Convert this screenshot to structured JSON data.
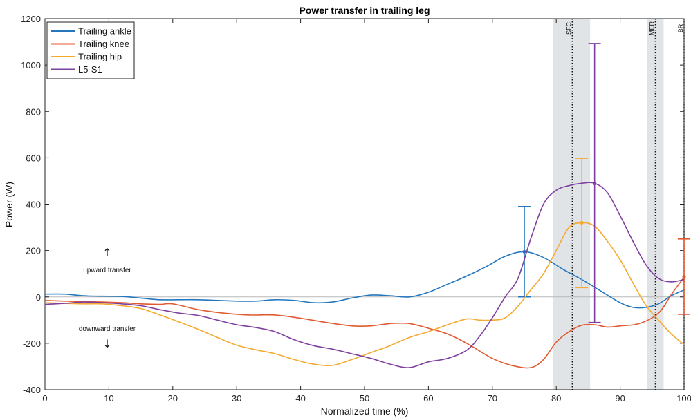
{
  "chart_data": {
    "type": "line",
    "title": "Power transfer in trailing leg",
    "xlabel": "Normalized time (%)",
    "ylabel": "Power (W)",
    "xlim": [
      0,
      100
    ],
    "ylim": [
      -400,
      1200
    ],
    "xticks": [
      0,
      10,
      20,
      30,
      40,
      50,
      60,
      70,
      80,
      90,
      100
    ],
    "yticks": [
      -400,
      -200,
      0,
      200,
      400,
      600,
      800,
      1000,
      1200
    ],
    "grid": false,
    "legend_position": "top-left",
    "zero_line": true,
    "events": [
      {
        "label": "SFC",
        "x": 82.5,
        "band": [
          79.5,
          85.3
        ]
      },
      {
        "label": "MER",
        "x": 95.5,
        "band": [
          94.2,
          96.8
        ]
      },
      {
        "label": "BR",
        "x": 100,
        "band": null
      }
    ],
    "annotations": {
      "up_arrow": "↑",
      "upward": "upward transfer",
      "downward": "downward transfer",
      "down_arrow": "↓"
    },
    "series": [
      {
        "name": "Trailing ankle",
        "color": "#2476bd",
        "x": [
          0,
          3,
          6,
          9,
          12,
          15,
          18,
          21,
          24,
          27,
          30,
          33,
          36,
          39,
          42,
          45,
          48,
          51,
          54,
          57,
          60,
          63,
          66,
          69,
          72,
          75,
          78,
          81,
          84,
          87,
          90,
          92,
          94,
          96,
          98,
          100
        ],
        "y": [
          12,
          12,
          5,
          3,
          2,
          -5,
          -12,
          -12,
          -12,
          -15,
          -18,
          -18,
          -12,
          -15,
          -25,
          -22,
          -5,
          8,
          5,
          0,
          20,
          55,
          90,
          130,
          175,
          195,
          170,
          120,
          75,
          25,
          -25,
          -45,
          -45,
          -30,
          5,
          30
        ],
        "errorbar": {
          "x": 75,
          "y": 195,
          "low": 0,
          "high": 390
        }
      },
      {
        "name": "Trailing knee",
        "color": "#e05a30",
        "x": [
          0,
          3,
          6,
          9,
          12,
          15,
          18,
          20,
          24,
          28,
          32,
          36,
          40,
          44,
          48,
          51,
          54,
          57,
          60,
          63,
          66,
          70,
          73,
          76,
          78,
          80,
          82,
          84,
          86,
          88,
          90,
          93,
          96,
          98,
          100
        ],
        "y": [
          -15,
          -18,
          -20,
          -22,
          -25,
          -30,
          -32,
          -30,
          -55,
          -70,
          -78,
          -78,
          -92,
          -110,
          -125,
          -125,
          -115,
          -115,
          -135,
          -160,
          -200,
          -265,
          -295,
          -305,
          -270,
          -195,
          -150,
          -122,
          -120,
          -130,
          -125,
          -115,
          -70,
          10,
          85
        ],
        "errorbar": {
          "x": 100,
          "y": 88,
          "low": -75,
          "high": 250
        }
      },
      {
        "name": "Trailing hip",
        "color": "#f5a930",
        "x": [
          0,
          3,
          6,
          9,
          12,
          15,
          18,
          21,
          24,
          27,
          30,
          33,
          36,
          39,
          42,
          45,
          48,
          51,
          54,
          57,
          60,
          63,
          66,
          68,
          70,
          72,
          74,
          76,
          78,
          80,
          82,
          84,
          86,
          88,
          90,
          92,
          94,
          96,
          98,
          100
        ],
        "y": [
          -25,
          -28,
          -30,
          -30,
          -38,
          -50,
          -78,
          -108,
          -140,
          -175,
          -208,
          -228,
          -245,
          -270,
          -290,
          -295,
          -270,
          -240,
          -210,
          -175,
          -150,
          -120,
          -95,
          -100,
          -100,
          -90,
          -40,
          30,
          100,
          200,
          300,
          320,
          305,
          240,
          160,
          60,
          -35,
          -100,
          -160,
          -205
        ],
        "errorbar": {
          "x": 84,
          "y": 320,
          "low": 40,
          "high": 598
        }
      },
      {
        "name": "L5-S1",
        "color": "#7e3fa0",
        "x": [
          0,
          3,
          6,
          9,
          12,
          15,
          18,
          21,
          24,
          27,
          30,
          33,
          36,
          39,
          42,
          45,
          48,
          51,
          54,
          57,
          60,
          63,
          66,
          68,
          70,
          72,
          74,
          76,
          78,
          80,
          82,
          84,
          86,
          88,
          90,
          92,
          94,
          96,
          98,
          100
        ],
        "y": [
          -32,
          -28,
          -22,
          -25,
          -30,
          -38,
          -55,
          -70,
          -80,
          -100,
          -120,
          -132,
          -150,
          -185,
          -210,
          -225,
          -245,
          -265,
          -290,
          -305,
          -280,
          -265,
          -230,
          -170,
          -90,
          0,
          80,
          250,
          400,
          460,
          480,
          490,
          490,
          450,
          350,
          240,
          140,
          80,
          65,
          75
        ],
        "errorbar": {
          "x": 86,
          "y": 490,
          "low": -110,
          "high": 1093
        }
      }
    ]
  }
}
